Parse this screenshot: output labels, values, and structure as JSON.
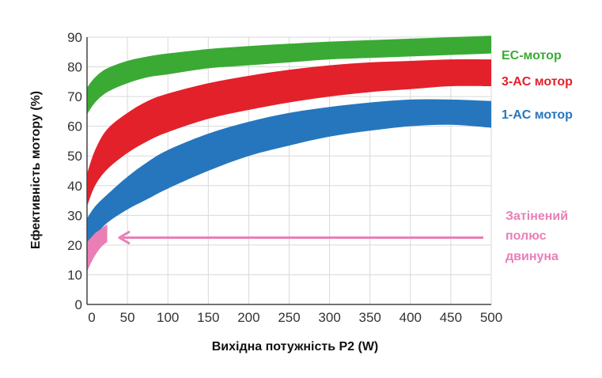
{
  "chart_data": {
    "type": "area",
    "xlabel": "Вихідна потужність P2 (W)",
    "ylabel": "Ефективність мотору (%)",
    "xlim": [
      0,
      500
    ],
    "ylim": [
      0,
      90
    ],
    "x_ticks": [
      0,
      50,
      100,
      150,
      200,
      250,
      300,
      350,
      400,
      450,
      500
    ],
    "y_ticks": [
      0,
      10,
      20,
      30,
      40,
      50,
      60,
      70,
      80,
      90
    ],
    "grid": true,
    "legend": "right",
    "series": [
      {
        "name": "EC-мотор",
        "color": "#3aaa35",
        "x": [
          0,
          10,
          25,
          50,
          75,
          100,
          150,
          200,
          250,
          300,
          350,
          400,
          450,
          500
        ],
        "upper": [
          73,
          76.5,
          79.5,
          82,
          83.5,
          84.5,
          86,
          87,
          87.8,
          88.5,
          89,
          89.5,
          90,
          90.5
        ],
        "lower": [
          64,
          68,
          71.5,
          74.5,
          76.5,
          77.5,
          79.5,
          80.5,
          81.5,
          82.5,
          83,
          83.5,
          84,
          84.5
        ]
      },
      {
        "name": "3-AC мотор",
        "color": "#e3212b",
        "x": [
          0,
          10,
          25,
          50,
          75,
          100,
          150,
          200,
          250,
          300,
          350,
          400,
          450,
          500
        ],
        "upper": [
          44,
          52,
          59,
          64.5,
          68.5,
          71,
          74.5,
          77,
          79,
          80.5,
          81.5,
          82,
          82.5,
          82.5
        ],
        "lower": [
          33,
          40,
          45.5,
          51,
          55,
          58,
          62.5,
          65.5,
          68,
          70,
          71.5,
          72.5,
          73.5,
          73.5
        ]
      },
      {
        "name": "1-AC мотор",
        "color": "#2676be",
        "x": [
          0,
          10,
          25,
          50,
          75,
          100,
          150,
          200,
          250,
          300,
          350,
          400,
          450,
          500
        ],
        "upper": [
          29,
          33,
          37,
          43,
          48,
          52,
          57.5,
          61.5,
          64.5,
          66.5,
          68,
          69,
          69,
          68.5
        ],
        "lower": [
          20,
          23,
          27.5,
          32,
          35.5,
          39,
          45,
          50,
          53.5,
          56.5,
          58.5,
          60,
          60.5,
          59.5
        ]
      },
      {
        "name": "Затінений полюс двинуна",
        "color": "#e97fb5",
        "x": [
          0,
          5,
          10,
          15,
          20,
          25
        ],
        "upper": [
          21,
          22.5,
          24,
          25,
          26,
          27
        ],
        "lower": [
          11,
          14,
          16.5,
          18.5,
          20,
          21
        ]
      }
    ],
    "annotations": [
      {
        "type": "arrow",
        "color": "#e97fb5",
        "from_x": 500,
        "to_x": 40,
        "y": 22.5
      }
    ]
  }
}
